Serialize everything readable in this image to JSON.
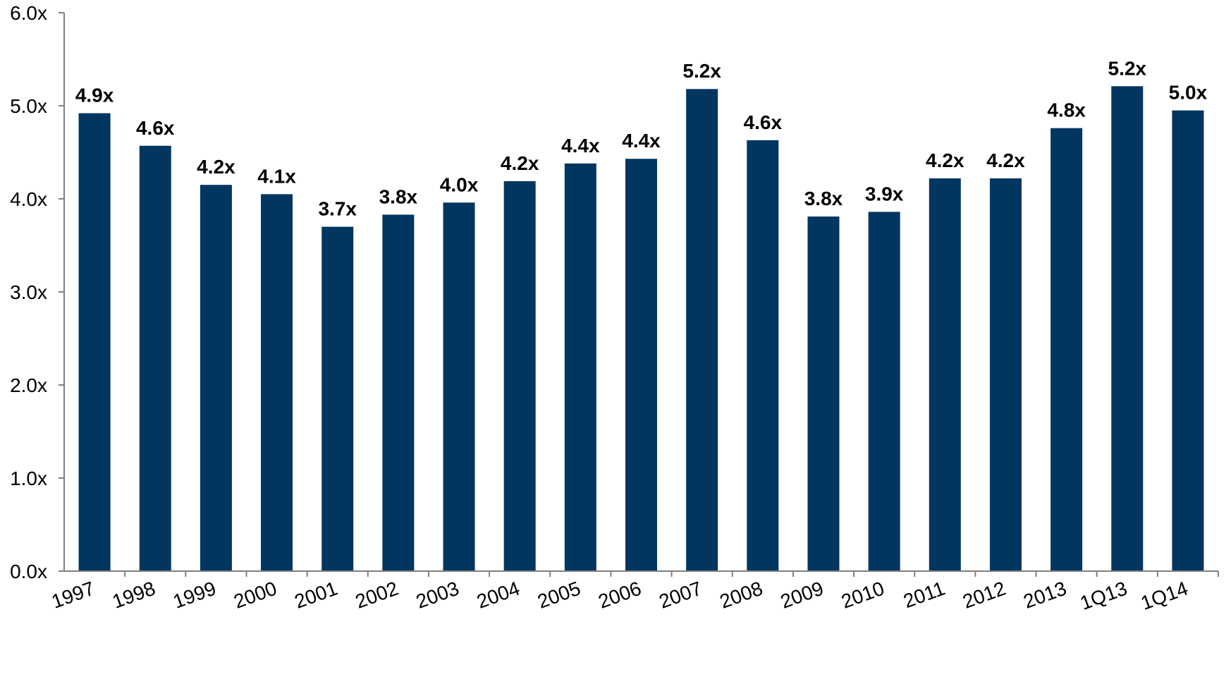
{
  "chart_data": {
    "type": "bar",
    "title": "",
    "xlabel": "",
    "ylabel": "",
    "ylim": [
      0,
      6
    ],
    "y_ticks": [
      0,
      1,
      2,
      3,
      4,
      5,
      6
    ],
    "y_tick_labels": [
      "0.0x",
      "1.0x",
      "2.0x",
      "3.0x",
      "4.0x",
      "5.0x",
      "6.0x"
    ],
    "grid": false,
    "legend": "none",
    "categories": [
      "1997",
      "1998",
      "1999",
      "2000",
      "2001",
      "2002",
      "2003",
      "2004",
      "2005",
      "2006",
      "2007",
      "2008",
      "2009",
      "2010",
      "2011",
      "2012",
      "2013",
      "1Q13",
      "1Q14"
    ],
    "values": [
      4.92,
      4.57,
      4.15,
      4.05,
      3.7,
      3.83,
      3.96,
      4.19,
      4.38,
      4.43,
      5.18,
      4.63,
      3.81,
      3.86,
      4.22,
      4.22,
      4.76,
      5.21,
      4.95
    ],
    "data_labels": [
      "4.9x",
      "4.6x",
      "4.2x",
      "4.1x",
      "3.7x",
      "3.8x",
      "4.0x",
      "4.2x",
      "4.4x",
      "4.4x",
      "5.2x",
      "4.6x",
      "3.8x",
      "3.9x",
      "4.2x",
      "4.2x",
      "4.8x",
      "5.2x",
      "5.0x"
    ],
    "colors": {
      "bar": "#003660",
      "axis": "#808080",
      "text": "#000000"
    }
  }
}
